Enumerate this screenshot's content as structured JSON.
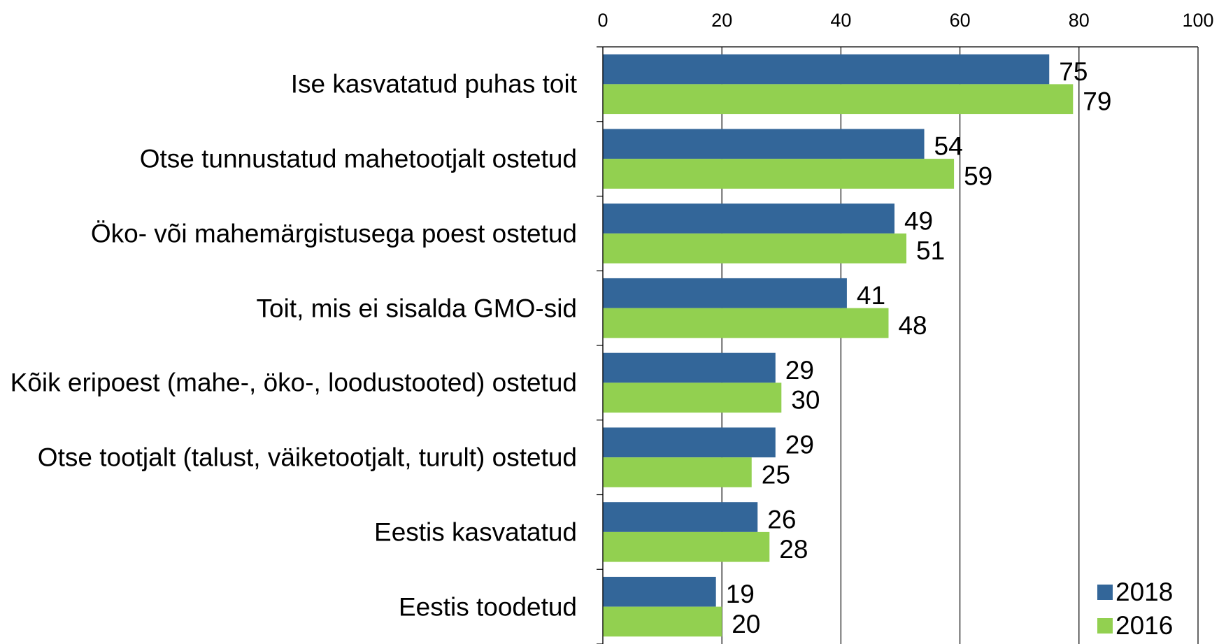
{
  "chart_data": {
    "type": "bar",
    "orientation": "horizontal",
    "categories": [
      "Ise kasvatatud puhas toit",
      "Otse tunnustatud mahetootjalt ostetud",
      "Öko- või mahemärgistusega poest ostetud",
      "Toit, mis ei sisalda GMO-sid",
      "Kõik eripoest (mahe-, öko-, loodustooted) ostetud",
      "Otse tootjalt (talust, väiketootjalt, turult) ostetud",
      "Eestis kasvatatud",
      "Eestis toodetud"
    ],
    "series": [
      {
        "name": "2018",
        "color": "#336699",
        "values": [
          75,
          54,
          49,
          41,
          29,
          29,
          26,
          19
        ]
      },
      {
        "name": "2016",
        "color": "#92d050",
        "values": [
          79,
          59,
          51,
          48,
          30,
          25,
          28,
          20
        ]
      }
    ],
    "xlim": [
      0,
      100
    ],
    "xticks": [
      0,
      20,
      40,
      60,
      80,
      100
    ],
    "grid": true,
    "legend": "lower right"
  }
}
